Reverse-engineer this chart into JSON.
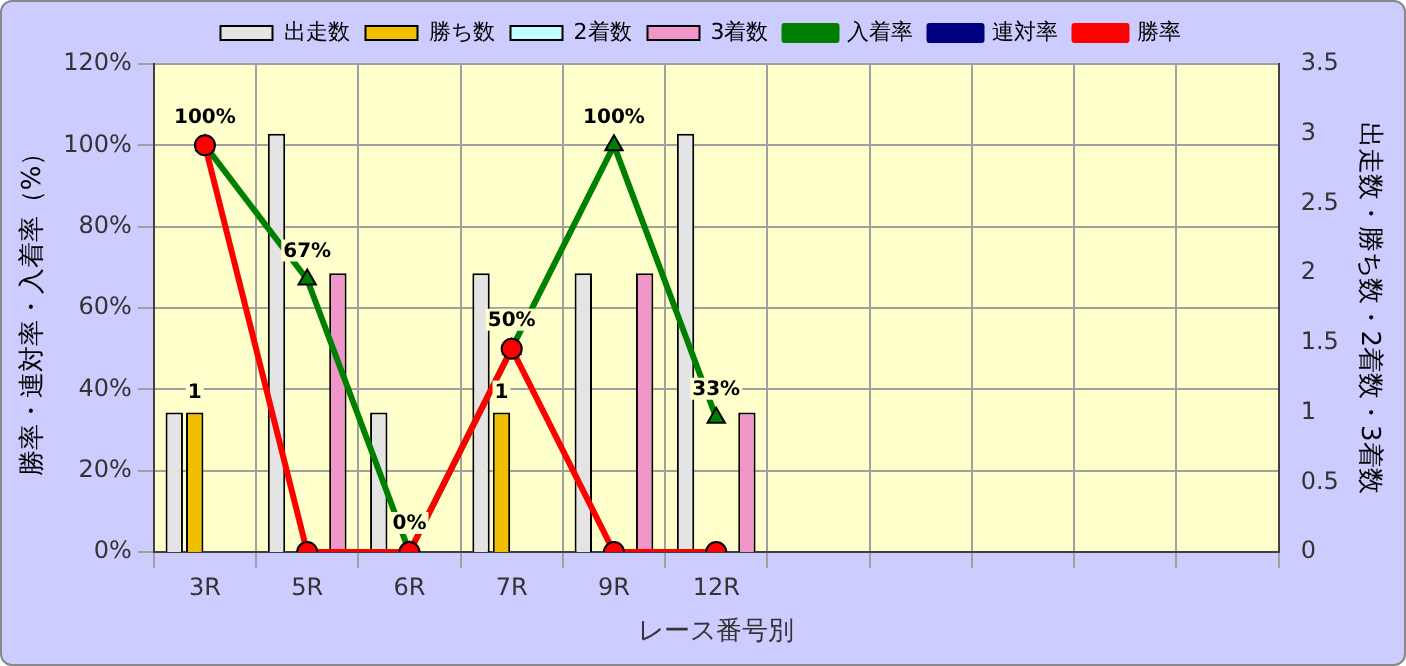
{
  "chart_data": {
    "type": "bar",
    "xlabel": "レース番号別",
    "ylabel": "勝率・連対率・入着率（%）",
    "y2label": "出走数・勝ち数・2着数・3着数",
    "categories": [
      "3R",
      "5R",
      "6R",
      "7R",
      "9R",
      "12R",
      null,
      null,
      null,
      null,
      null
    ],
    "ylim": [
      0,
      120
    ],
    "yticks": [
      {
        "value": 0,
        "label": "0%"
      },
      {
        "value": 20,
        "label": "20%"
      },
      {
        "value": 40,
        "label": "40%"
      },
      {
        "value": 60,
        "label": "60%"
      },
      {
        "value": 80,
        "label": "80%"
      },
      {
        "value": 100,
        "label": "100%"
      },
      {
        "value": 120,
        "label": "120%"
      }
    ],
    "y2lim": [
      0,
      3.5
    ],
    "y2ticks": [
      0,
      0.5,
      1,
      1.5,
      2,
      2.5,
      3,
      3.5
    ],
    "grid": true,
    "legend": "top",
    "series": [
      {
        "name": "出走数",
        "axis": "y2",
        "color": "#e4e4e4",
        "values": [
          1,
          3,
          1,
          2,
          2,
          3,
          null,
          null,
          null,
          null,
          null
        ]
      },
      {
        "name": "勝ち数",
        "axis": "y2",
        "color": "#f0c000",
        "values": [
          1,
          0,
          0,
          1,
          0,
          0,
          null,
          null,
          null,
          null,
          null
        ],
        "value_labels": [
          "1",
          null,
          null,
          "1",
          null,
          null,
          null,
          null,
          null,
          null,
          null
        ]
      },
      {
        "name": "2着数",
        "axis": "y2",
        "color": "#c0ffff",
        "values": [
          0,
          0,
          0,
          0,
          0,
          0,
          null,
          null,
          null,
          null,
          null
        ]
      },
      {
        "name": "3着数",
        "axis": "y2",
        "color": "#f096c8",
        "values": [
          0,
          2,
          0,
          0,
          2,
          1,
          null,
          null,
          null,
          null,
          null
        ]
      },
      {
        "name": "入着率",
        "type": "line",
        "axis": "y",
        "color": "#008000",
        "marker": "triangle",
        "values": [
          100,
          67,
          0,
          50,
          100,
          33,
          null,
          null,
          null,
          null,
          null
        ],
        "value_labels": [
          "100%",
          "67%",
          "0%",
          "50%",
          "100%",
          "33%",
          null,
          null,
          null,
          null,
          null
        ]
      },
      {
        "name": "連対率",
        "type": "line",
        "axis": "y",
        "color": "#000080",
        "marker": "diamond",
        "values": [
          null,
          null,
          null,
          null,
          null,
          null,
          null,
          null,
          null,
          null,
          null
        ]
      },
      {
        "name": "勝率",
        "type": "line",
        "axis": "y",
        "color": "#ff0000",
        "marker": "circle",
        "values": [
          100,
          0,
          0,
          50,
          0,
          0,
          null,
          null,
          null,
          null,
          null
        ]
      }
    ]
  }
}
